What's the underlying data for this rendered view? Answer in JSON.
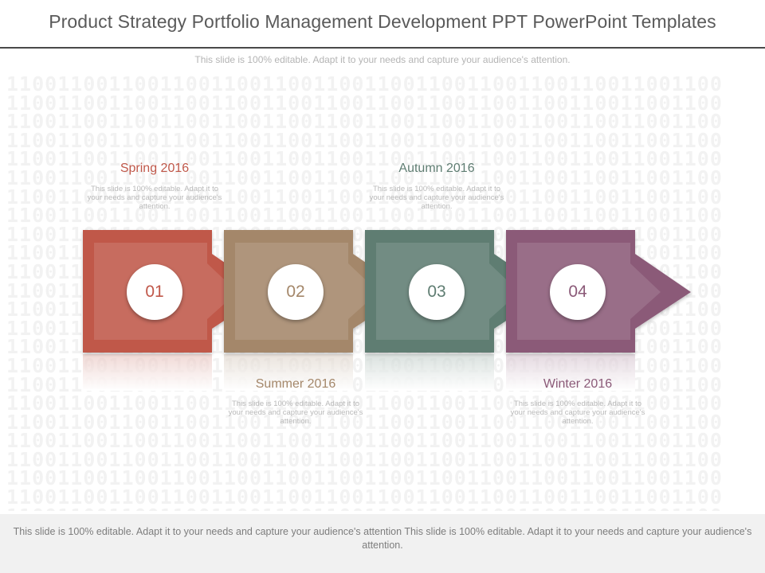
{
  "header": {
    "title": "Product Strategy Portfolio Management Development PPT PowerPoint Templates",
    "subtitle": "This slide is 100% editable. Adapt it to your needs and capture your audience's attention."
  },
  "steps": [
    {
      "number": "01",
      "label": "Spring 2016",
      "description": "This slide is 100% editable. Adapt it to your needs and capture your audience's attention.",
      "color": "#c0584a",
      "position": "top"
    },
    {
      "number": "02",
      "label": "Summer 2016",
      "description": "This slide is 100% editable. Adapt it to your needs and capture your audience's attention.",
      "color": "#a4876a",
      "position": "bottom"
    },
    {
      "number": "03",
      "label": "Autumn 2016",
      "description": "This slide is 100% editable. Adapt it to your needs and capture your audience's attention.",
      "color": "#5f7d72",
      "position": "top"
    },
    {
      "number": "04",
      "label": "Winter 2016",
      "description": "This slide is 100% editable. Adapt it to your needs and capture your audience's attention.",
      "color": "#8b5a78",
      "position": "bottom"
    }
  ],
  "footer": {
    "text": "This slide is 100% editable. Adapt it to your needs and capture your audience's attention This slide is 100% editable. Adapt it to your needs and capture your audience's attention."
  }
}
